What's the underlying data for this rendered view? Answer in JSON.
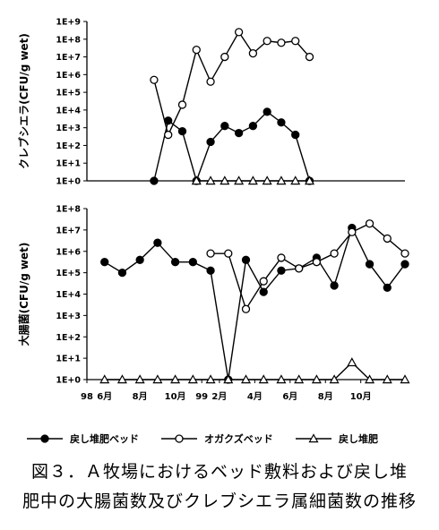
{
  "chart_data": [
    {
      "type": "line",
      "ylabel": "クレブシエラ(CFU/g wet)",
      "yscale": "log",
      "ylim_exponent": [
        0,
        9
      ],
      "ytick_labels": [
        "1E+0",
        "1E+1",
        "1E+2",
        "1E+3",
        "1E+4",
        "1E+5",
        "1E+6",
        "1E+7",
        "1E+8",
        "1E+9"
      ],
      "series": [
        {
          "name": "戻し堆肥ベッド",
          "marker": "filled-circle",
          "points": [
            [
              8.8,
              0
            ],
            [
              9.6,
              3.4
            ],
            [
              10.4,
              2.8
            ],
            [
              11.2,
              0
            ],
            [
              12.0,
              2.2
            ],
            [
              12.8,
              3.1
            ],
            [
              13.6,
              2.7
            ],
            [
              14.4,
              3.1
            ],
            [
              15.2,
              3.9
            ],
            [
              16.0,
              3.3
            ],
            [
              16.8,
              2.6
            ],
            [
              17.6,
              0
            ]
          ]
        },
        {
          "name": "オガクズベッド",
          "marker": "open-circle",
          "points": [
            [
              8.8,
              5.7
            ],
            [
              9.6,
              2.6
            ],
            [
              10.4,
              4.3
            ],
            [
              11.2,
              7.4
            ],
            [
              12.0,
              5.6
            ],
            [
              12.8,
              7.0
            ],
            [
              13.6,
              8.4
            ],
            [
              14.4,
              7.2
            ],
            [
              15.2,
              7.9
            ],
            [
              16.0,
              7.8
            ],
            [
              16.8,
              7.9
            ],
            [
              17.6,
              7.0
            ]
          ]
        },
        {
          "name": "戻し堆肥",
          "marker": "open-triangle",
          "points": [
            [
              11.2,
              0
            ],
            [
              12.0,
              0
            ],
            [
              12.8,
              0
            ],
            [
              13.6,
              0
            ],
            [
              14.4,
              0
            ],
            [
              15.2,
              0
            ],
            [
              16.0,
              0
            ],
            [
              16.8,
              0
            ],
            [
              17.6,
              0
            ]
          ]
        }
      ]
    },
    {
      "type": "line",
      "ylabel": "大腸菌(CFU/g wet)",
      "yscale": "log",
      "ylim_exponent": [
        0,
        8
      ],
      "ytick_labels": [
        "1E+0",
        "1E+1",
        "1E+2",
        "1E+3",
        "1E+4",
        "1E+5",
        "1E+6",
        "1E+7",
        "1E+8"
      ],
      "x_tick_labels": [
        {
          "x": 5.0,
          "label": "98"
        },
        {
          "x": 6.0,
          "label": "6月"
        },
        {
          "x": 8.0,
          "label": "8月"
        },
        {
          "x": 10.0,
          "label": "10月"
        },
        {
          "x": 11.5,
          "label": "99"
        },
        {
          "x": 12.5,
          "label": "2月"
        },
        {
          "x": 14.5,
          "label": "4月"
        },
        {
          "x": 16.5,
          "label": "6月"
        },
        {
          "x": 18.5,
          "label": "8月"
        },
        {
          "x": 20.5,
          "label": "10月"
        }
      ],
      "series": [
        {
          "name": "戻し堆肥ベッド",
          "marker": "filled-circle",
          "points": [
            [
              6.0,
              5.5
            ],
            [
              7.0,
              5.0
            ],
            [
              8.0,
              5.6
            ],
            [
              9.0,
              6.4
            ],
            [
              10.0,
              5.5
            ],
            [
              11.0,
              5.5
            ],
            [
              12.0,
              5.1
            ],
            [
              13.0,
              0
            ],
            [
              14.0,
              5.6
            ],
            [
              15.0,
              4.1
            ],
            [
              16.0,
              5.1
            ],
            [
              17.0,
              5.2
            ],
            [
              18.0,
              5.7
            ],
            [
              19.0,
              4.4
            ],
            [
              20.0,
              7.1
            ],
            [
              21.0,
              5.4
            ],
            [
              22.0,
              4.3
            ],
            [
              23.0,
              5.4
            ]
          ]
        },
        {
          "name": "オガクズベッド",
          "marker": "open-circle",
          "points": [
            [
              12.0,
              5.9
            ],
            [
              13.0,
              5.9
            ],
            [
              14.0,
              3.3
            ],
            [
              15.0,
              4.6
            ],
            [
              16.0,
              5.7
            ],
            [
              17.0,
              5.2
            ],
            [
              18.0,
              5.5
            ],
            [
              19.0,
              5.9
            ],
            [
              20.0,
              6.9
            ],
            [
              21.0,
              7.3
            ],
            [
              22.0,
              6.6
            ],
            [
              23.0,
              5.9
            ]
          ]
        },
        {
          "name": "戻し堆肥",
          "marker": "open-triangle",
          "points": [
            [
              6.0,
              0
            ],
            [
              7.0,
              0
            ],
            [
              8.0,
              0
            ],
            [
              9.0,
              0
            ],
            [
              10.0,
              0
            ],
            [
              11.0,
              0
            ],
            [
              12.0,
              0
            ],
            [
              13.0,
              0
            ],
            [
              14.0,
              0
            ],
            [
              15.0,
              0
            ],
            [
              16.0,
              0
            ],
            [
              17.0,
              0
            ],
            [
              18.0,
              0
            ],
            [
              19.0,
              0
            ],
            [
              20.0,
              0.8
            ],
            [
              21.0,
              0
            ],
            [
              22.0,
              0
            ],
            [
              23.0,
              0
            ]
          ]
        }
      ]
    }
  ],
  "legend": [
    {
      "label": "戻し堆肥ベッド",
      "marker": "filled-circle"
    },
    {
      "label": "オガクズベッド",
      "marker": "open-circle"
    },
    {
      "label": "戻し堆肥",
      "marker": "open-triangle"
    }
  ],
  "caption": {
    "line1": "図３．Ａ牧場におけるベッド敷料および戻し堆",
    "line2": "肥中の大腸菌数及びクレブシエラ属細菌数の推移"
  }
}
